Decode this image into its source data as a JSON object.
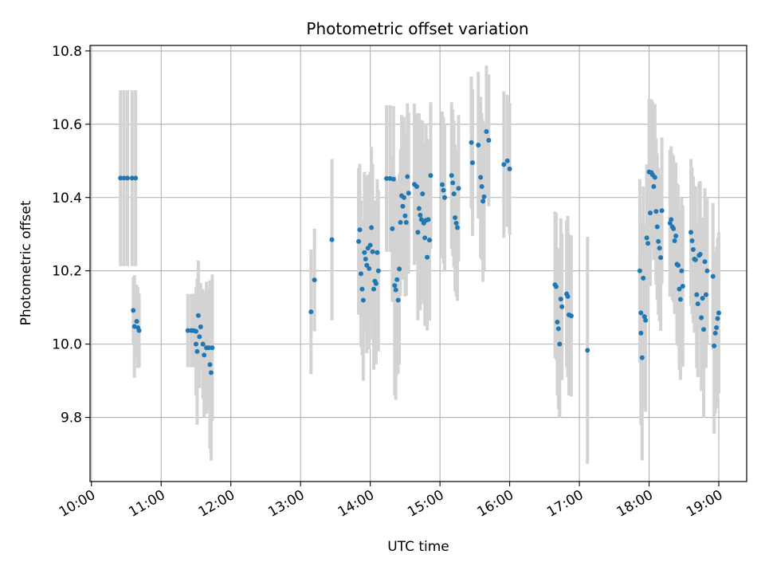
{
  "chart_data": {
    "type": "scatter",
    "title": "Photometric offset variation",
    "xlabel": "UTC time",
    "ylabel": "Photometric offset",
    "x_tick_labels": [
      "10:00",
      "11:00",
      "12:00",
      "13:00",
      "14:00",
      "15:00",
      "16:00",
      "17:00",
      "18:00",
      "19:00"
    ],
    "y_tick_labels": [
      "9.8",
      "10.0",
      "10.2",
      "10.4",
      "10.6",
      "10.8"
    ],
    "ylim": [
      9.625,
      10.815
    ],
    "xlim_hours": [
      9.98,
      19.4
    ],
    "grid": true,
    "colors": {
      "points": "#1f77b4",
      "errorbars": "#d3d3d3",
      "grid": "#b0b0b0"
    },
    "series": [
      {
        "points": [
          [
            "10:25",
            10.453,
            0.24
          ],
          [
            "10:28",
            10.453,
            0.24
          ],
          [
            "10:31",
            10.453,
            0.24
          ],
          [
            "10:35",
            10.453,
            0.24
          ],
          [
            "10:38",
            10.453,
            0.24
          ],
          [
            "10:36",
            10.092,
            0.09
          ],
          [
            "10:37",
            10.048,
            0.14
          ],
          [
            "10:39",
            10.062,
            0.1
          ],
          [
            "10:40",
            10.045,
            0.11
          ],
          [
            "10:41",
            10.037,
            0.1
          ],
          [
            "11:23",
            10.037,
            0.1
          ],
          [
            "11:26",
            10.037,
            0.1
          ],
          [
            "11:28",
            10.037,
            0.1
          ],
          [
            "11:30",
            10.035,
            0.12
          ],
          [
            "11:32",
            10.078,
            0.15
          ],
          [
            "11:30",
            10.0,
            0.14
          ],
          [
            "11:31",
            9.98,
            0.2
          ],
          [
            "11:33",
            10.02,
            0.14
          ],
          [
            "11:34",
            10.047,
            0.12
          ],
          [
            "11:36",
            10.0,
            0.15
          ],
          [
            "11:37",
            9.97,
            0.17
          ],
          [
            "11:39",
            9.99,
            0.18
          ],
          [
            "11:41",
            9.99,
            0.16
          ],
          [
            "11:42",
            9.944,
            0.23
          ],
          [
            "11:43",
            9.922,
            0.24
          ],
          [
            "11:44",
            9.99,
            0.2
          ],
          [
            "13:09",
            10.088,
            0.17
          ],
          [
            "13:12",
            10.175,
            0.14
          ],
          [
            "13:27",
            10.285,
            0.22
          ],
          [
            "13:50",
            10.28,
            0.2
          ],
          [
            "13:51",
            10.312,
            0.18
          ],
          [
            "13:52",
            10.192,
            0.2
          ],
          [
            "13:53",
            10.15,
            0.18
          ],
          [
            "13:54",
            10.12,
            0.22
          ],
          [
            "13:55",
            10.25,
            0.22
          ],
          [
            "13:56",
            10.232,
            0.2
          ],
          [
            "13:57",
            10.215,
            0.24
          ],
          [
            "13:58",
            10.262,
            0.2
          ],
          [
            "13:59",
            10.206,
            0.22
          ],
          [
            "14:00",
            10.27,
            0.2
          ],
          [
            "14:01",
            10.318,
            0.22
          ],
          [
            "14:02",
            10.252,
            0.24
          ],
          [
            "14:03",
            10.15,
            0.22
          ],
          [
            "14:04",
            10.172,
            0.22
          ],
          [
            "14:05",
            10.165,
            0.22
          ],
          [
            "14:06",
            10.25,
            0.2
          ],
          [
            "14:07",
            10.2,
            0.22
          ],
          [
            "14:14",
            10.452,
            0.2
          ],
          [
            "14:17",
            10.452,
            0.2
          ],
          [
            "14:19",
            10.315,
            0.2
          ],
          [
            "14:20",
            10.45,
            0.2
          ],
          [
            "14:21",
            10.16,
            0.3
          ],
          [
            "14:22",
            10.148,
            0.3
          ],
          [
            "14:23",
            10.176,
            0.26
          ],
          [
            "14:24",
            10.12,
            0.2
          ],
          [
            "14:25",
            10.205,
            0.26
          ],
          [
            "14:26",
            10.332,
            0.2
          ],
          [
            "14:27",
            10.405,
            0.22
          ],
          [
            "14:28",
            10.376,
            0.2
          ],
          [
            "14:29",
            10.4,
            0.22
          ],
          [
            "14:30",
            10.35,
            0.22
          ],
          [
            "14:31",
            10.332,
            0.2
          ],
          [
            "14:32",
            10.457,
            0.2
          ],
          [
            "14:33",
            10.412,
            0.22
          ],
          [
            "14:38",
            10.436,
            0.22
          ],
          [
            "14:40",
            10.43,
            0.2
          ],
          [
            "14:41",
            10.305,
            0.24
          ],
          [
            "14:42",
            10.37,
            0.26
          ],
          [
            "14:43",
            10.352,
            0.26
          ],
          [
            "14:44",
            10.34,
            0.22
          ],
          [
            "14:45",
            10.41,
            0.2
          ],
          [
            "14:46",
            10.33,
            0.22
          ],
          [
            "14:47",
            10.29,
            0.24
          ],
          [
            "14:48",
            10.338,
            0.26
          ],
          [
            "14:49",
            10.237,
            0.2
          ],
          [
            "14:50",
            10.34,
            0.22
          ],
          [
            "14:51",
            10.284,
            0.22
          ],
          [
            "14:52",
            10.46,
            0.2
          ],
          [
            "15:02",
            10.435,
            0.2
          ],
          [
            "15:03",
            10.42,
            0.2
          ],
          [
            "15:04",
            10.4,
            0.2
          ],
          [
            "15:10",
            10.46,
            0.2
          ],
          [
            "15:11",
            10.44,
            0.2
          ],
          [
            "15:12",
            10.41,
            0.2
          ],
          [
            "15:13",
            10.345,
            0.2
          ],
          [
            "15:14",
            10.33,
            0.2
          ],
          [
            "15:15",
            10.318,
            0.2
          ],
          [
            "15:16",
            10.425,
            0.2
          ],
          [
            "15:27",
            10.55,
            0.18
          ],
          [
            "15:28",
            10.495,
            0.2
          ],
          [
            "15:33",
            10.543,
            0.2
          ],
          [
            "15:35",
            10.455,
            0.22
          ],
          [
            "15:36",
            10.43,
            0.2
          ],
          [
            "15:37",
            10.39,
            0.22
          ],
          [
            "15:38",
            10.402,
            0.2
          ],
          [
            "15:40",
            10.58,
            0.18
          ],
          [
            "15:42",
            10.556,
            0.18
          ],
          [
            "15:55",
            10.49,
            0.2
          ],
          [
            "15:58",
            10.5,
            0.18
          ],
          [
            "16:00",
            10.478,
            0.18
          ],
          [
            "16:39",
            10.162,
            0.2
          ],
          [
            "16:40",
            10.157,
            0.2
          ],
          [
            "16:41",
            10.06,
            0.2
          ],
          [
            "16:42",
            10.042,
            0.22
          ],
          [
            "16:43",
            10.0,
            0.2
          ],
          [
            "16:44",
            10.123,
            0.22
          ],
          [
            "16:45",
            10.102,
            0.2
          ],
          [
            "16:49",
            10.137,
            0.2
          ],
          [
            "16:50",
            10.13,
            0.22
          ],
          [
            "16:51",
            10.08,
            0.22
          ],
          [
            "16:53",
            10.077,
            0.22
          ],
          [
            "17:07",
            9.983,
            0.31
          ],
          [
            "17:52",
            10.2,
            0.25
          ],
          [
            "17:53",
            10.085,
            0.25
          ],
          [
            "17:53",
            10.03,
            0.25
          ],
          [
            "17:54",
            9.963,
            0.28
          ],
          [
            "17:55",
            10.18,
            0.25
          ],
          [
            "17:56",
            10.075,
            0.25
          ],
          [
            "17:57",
            10.065,
            0.25
          ],
          [
            "17:58",
            10.29,
            0.2
          ],
          [
            "17:59",
            10.275,
            0.2
          ],
          [
            "18:00",
            10.47,
            0.2
          ],
          [
            "18:01",
            10.358,
            0.2
          ],
          [
            "18:02",
            10.468,
            0.2
          ],
          [
            "18:03",
            10.462,
            0.2
          ],
          [
            "18:04",
            10.43,
            0.2
          ],
          [
            "18:05",
            10.455,
            0.2
          ],
          [
            "18:06",
            10.362,
            0.2
          ],
          [
            "18:07",
            10.32,
            0.2
          ],
          [
            "18:08",
            10.28,
            0.2
          ],
          [
            "18:09",
            10.262,
            0.2
          ],
          [
            "18:10",
            10.236,
            0.2
          ],
          [
            "18:11",
            10.364,
            0.2
          ],
          [
            "18:18",
            10.33,
            0.2
          ],
          [
            "18:19",
            10.34,
            0.2
          ],
          [
            "18:20",
            10.32,
            0.2
          ],
          [
            "18:21",
            10.315,
            0.2
          ],
          [
            "18:22",
            10.282,
            0.2
          ],
          [
            "18:23",
            10.295,
            0.2
          ],
          [
            "18:24",
            10.218,
            0.22
          ],
          [
            "18:25",
            10.215,
            0.22
          ],
          [
            "18:26",
            10.15,
            0.22
          ],
          [
            "18:27",
            10.122,
            0.22
          ],
          [
            "18:28",
            10.2,
            0.2
          ],
          [
            "18:29",
            10.158,
            0.22
          ],
          [
            "18:36",
            10.305,
            0.2
          ],
          [
            "18:37",
            10.282,
            0.2
          ],
          [
            "18:38",
            10.258,
            0.2
          ],
          [
            "18:39",
            10.232,
            0.2
          ],
          [
            "18:40",
            10.23,
            0.2
          ],
          [
            "18:41",
            10.135,
            0.2
          ],
          [
            "18:42",
            10.11,
            0.2
          ],
          [
            "18:43",
            10.242,
            0.2
          ],
          [
            "18:44",
            10.245,
            0.2
          ],
          [
            "18:45",
            10.072,
            0.2
          ],
          [
            "18:46",
            10.125,
            0.22
          ],
          [
            "18:47",
            10.04,
            0.24
          ],
          [
            "18:48",
            10.225,
            0.2
          ],
          [
            "18:49",
            10.135,
            0.2
          ],
          [
            "18:50",
            10.2,
            0.2
          ],
          [
            "18:55",
            10.185,
            0.2
          ],
          [
            "18:56",
            9.995,
            0.24
          ],
          [
            "18:57",
            10.03,
            0.22
          ],
          [
            "18:58",
            10.045,
            0.22
          ],
          [
            "18:59",
            10.07,
            0.22
          ],
          [
            "19:00",
            10.085,
            0.22
          ]
        ]
      }
    ]
  }
}
